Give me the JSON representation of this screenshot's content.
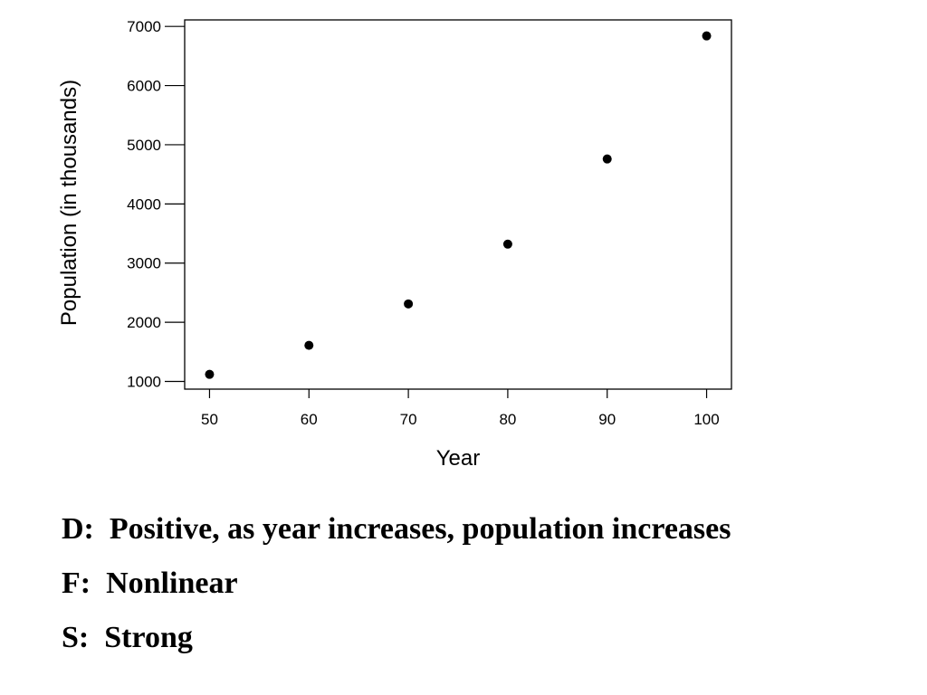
{
  "chart_data": {
    "type": "scatter",
    "title": "",
    "xlabel": "Year",
    "ylabel": "Population (in thousands)",
    "xlim": [
      47.5,
      102.5
    ],
    "ylim": [
      870,
      7110
    ],
    "x_ticks": [
      "50",
      "60",
      "70",
      "80",
      "90",
      "100"
    ],
    "y_ticks": [
      "1000",
      "2000",
      "3000",
      "4000",
      "5000",
      "6000",
      "7000"
    ],
    "grid": false,
    "legend": "none",
    "marker_color": "#000000",
    "points": [
      {
        "x": 50,
        "y": 1120
      },
      {
        "x": 60,
        "y": 1610
      },
      {
        "x": 70,
        "y": 2310
      },
      {
        "x": 80,
        "y": 3320
      },
      {
        "x": 90,
        "y": 4760
      },
      {
        "x": 100,
        "y": 6840
      }
    ]
  },
  "notes": {
    "direction": "D:  Positive, as year increases, population increases",
    "form": "F:  Nonlinear",
    "strength": "S:  Strong"
  }
}
